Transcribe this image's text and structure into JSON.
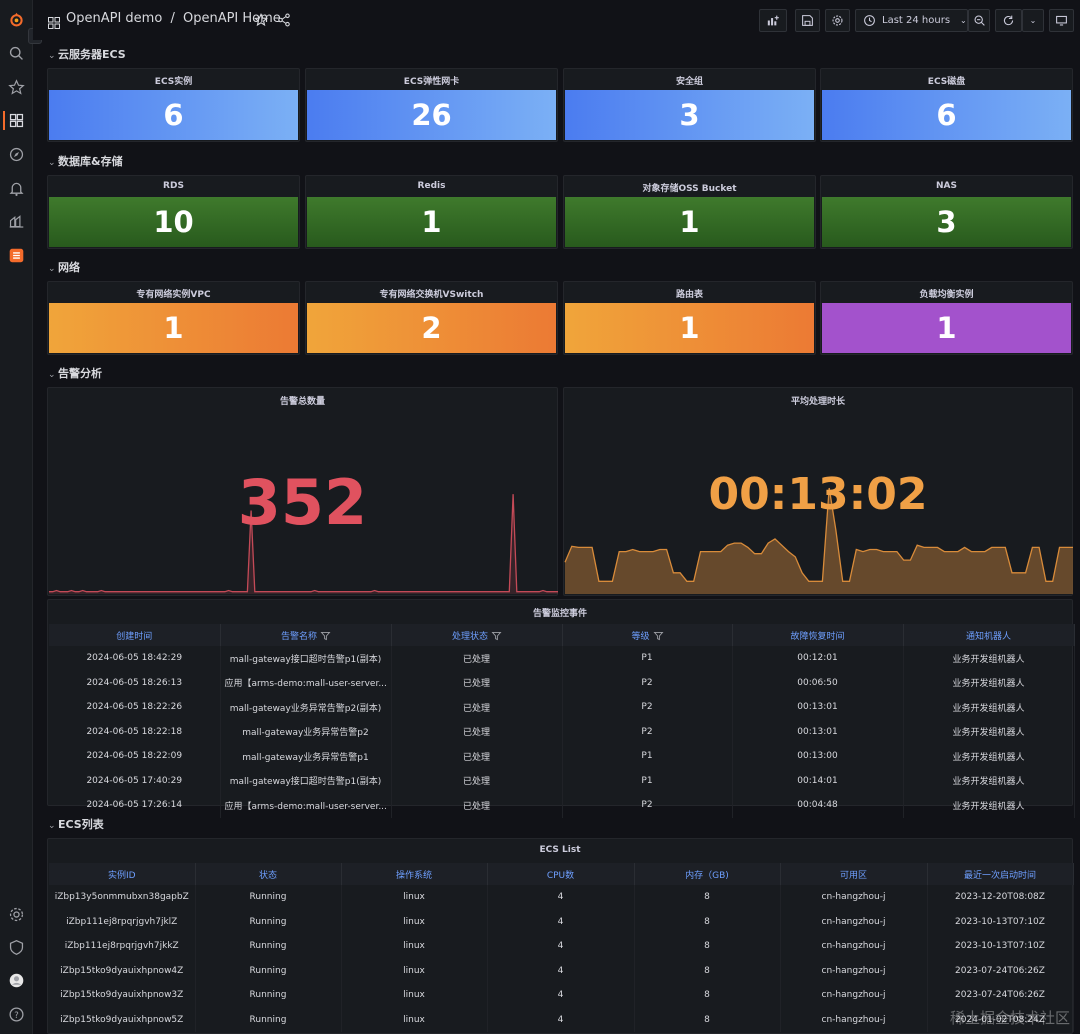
{
  "breadcrumb": {
    "folder": "OpenAPI demo",
    "separator": "/",
    "dashboard": "OpenAPI Home"
  },
  "toolbar": {
    "time_range": "Last 24 hours"
  },
  "rows": {
    "ecs": "云服务器ECS",
    "db": "数据库&存储",
    "net": "网络",
    "alert": "告警分析",
    "ecs_list": "ECS列表"
  },
  "ecs_stats": [
    {
      "title": "ECS实例",
      "value": "6"
    },
    {
      "title": "ECS弹性网卡",
      "value": "26"
    },
    {
      "title": "安全组",
      "value": "3"
    },
    {
      "title": "ECS磁盘",
      "value": "6"
    }
  ],
  "db_stats": [
    {
      "title": "RDS",
      "value": "10"
    },
    {
      "title": "Redis",
      "value": "1"
    },
    {
      "title": "对象存储OSS Bucket",
      "value": "1"
    },
    {
      "title": "NAS",
      "value": "3"
    }
  ],
  "net_stats": [
    {
      "title": "专有网络实例VPC",
      "value": "1"
    },
    {
      "title": "专有网络交换机VSwitch",
      "value": "2"
    },
    {
      "title": "路由表",
      "value": "1"
    },
    {
      "title": "负载均衡实例",
      "value": "1"
    }
  ],
  "alert_total": {
    "title": "告警总数量",
    "value": "352",
    "color": "#e0525f"
  },
  "alert_avg": {
    "title": "平均处理时长",
    "value": "00:13:02",
    "color": "#f0a046"
  },
  "chart_data": [
    {
      "type": "area",
      "title": "告警总数量",
      "series": [
        {
          "values": [
            2,
            2,
            3,
            2,
            2,
            2,
            3,
            2,
            2,
            3,
            2,
            2,
            2,
            2,
            3,
            2,
            2,
            2,
            2,
            2,
            2,
            2,
            2,
            2,
            2,
            2,
            2,
            2,
            2,
            2,
            2,
            2,
            2,
            2,
            2,
            2,
            2,
            2,
            2,
            2,
            2,
            2,
            2,
            2,
            2,
            2,
            2,
            2,
            3,
            2,
            2,
            2,
            2,
            2,
            72,
            2,
            2,
            2,
            2,
            2,
            2,
            2,
            2,
            2,
            2,
            2,
            2,
            2,
            2,
            2,
            2,
            3,
            2,
            2,
            2,
            2,
            2,
            2,
            2,
            2,
            2,
            2,
            2,
            2,
            2,
            2,
            2,
            3,
            2,
            2,
            2,
            2,
            2,
            2,
            2,
            2,
            2,
            2,
            2,
            2,
            2,
            2,
            2,
            2,
            2,
            2,
            2,
            2,
            2,
            2,
            2,
            2,
            2,
            2,
            2,
            2,
            2,
            2,
            2,
            2,
            2,
            2,
            2,
            2,
            86,
            2,
            2,
            2,
            2,
            2,
            2,
            2,
            3,
            2,
            2,
            2,
            2
          ]
        }
      ]
    },
    {
      "type": "area",
      "title": "平均处理时长",
      "series": [
        {
          "values": [
            30,
            45,
            44,
            44,
            44,
            12,
            12,
            12,
            40,
            40,
            42,
            40,
            40,
            40,
            42,
            42,
            20,
            20,
            12,
            12,
            40,
            40,
            40,
            40,
            46,
            48,
            48,
            44,
            38,
            38,
            48,
            52,
            46,
            40,
            35,
            20,
            12,
            12,
            12,
            100,
            60,
            12,
            12,
            42,
            40,
            42,
            42,
            40,
            40,
            40,
            32,
            32,
            46,
            44,
            44,
            44,
            40,
            40,
            40,
            44,
            40,
            40,
            40,
            44,
            44,
            44,
            20,
            20,
            20,
            44,
            44,
            12,
            12,
            44,
            44,
            44
          ]
        }
      ]
    }
  ],
  "alert_table": {
    "title": "告警监控事件",
    "columns": [
      "创建时间",
      "告警名称",
      "处理状态",
      "等级",
      "故障恢复时间",
      "通知机器人"
    ],
    "rows": [
      [
        "2024-06-05 18:42:29",
        "mall-gateway接口超时告警p1(副本)",
        "已处理",
        "P1",
        "00:12:01",
        "业务开发组机器人"
      ],
      [
        "2024-06-05 18:26:13",
        "应用【arms-demo:mall-user-server...",
        "已处理",
        "P2",
        "00:06:50",
        "业务开发组机器人"
      ],
      [
        "2024-06-05 18:22:26",
        "mall-gateway业务异常告警p2(副本)",
        "已处理",
        "P2",
        "00:13:01",
        "业务开发组机器人"
      ],
      [
        "2024-06-05 18:22:18",
        "mall-gateway业务异常告警p2",
        "已处理",
        "P2",
        "00:13:01",
        "业务开发组机器人"
      ],
      [
        "2024-06-05 18:22:09",
        "mall-gateway业务异常告警p1",
        "已处理",
        "P1",
        "00:13:00",
        "业务开发组机器人"
      ],
      [
        "2024-06-05 17:40:29",
        "mall-gateway接口超时告警p1(副本)",
        "已处理",
        "P1",
        "00:14:01",
        "业务开发组机器人"
      ],
      [
        "2024-06-05 17:26:14",
        "应用【arms-demo:mall-user-server...",
        "已处理",
        "P2",
        "00:04:48",
        "业务开发组机器人"
      ]
    ]
  },
  "ecs_table": {
    "title": "ECS List",
    "columns": [
      "实例ID",
      "状态",
      "操作系统",
      "CPU数",
      "内存（GB)",
      "可用区",
      "最近一次启动时间"
    ],
    "rows": [
      [
        "iZbp13y5onmmubxn38gapbZ",
        "Running",
        "linux",
        "4",
        "8",
        "cn-hangzhou-j",
        "2023-12-20T08:08Z"
      ],
      [
        "iZbp111ej8rpqrjgvh7jklZ",
        "Running",
        "linux",
        "4",
        "8",
        "cn-hangzhou-j",
        "2023-10-13T07:10Z"
      ],
      [
        "iZbp111ej8rpqrjgvh7jkkZ",
        "Running",
        "linux",
        "4",
        "8",
        "cn-hangzhou-j",
        "2023-10-13T07:10Z"
      ],
      [
        "iZbp15tko9dyauixhpnow4Z",
        "Running",
        "linux",
        "4",
        "8",
        "cn-hangzhou-j",
        "2023-07-24T06:26Z"
      ],
      [
        "iZbp15tko9dyauixhpnow3Z",
        "Running",
        "linux",
        "4",
        "8",
        "cn-hangzhou-j",
        "2023-07-24T06:26Z"
      ],
      [
        "iZbp15tko9dyauixhpnow5Z",
        "Running",
        "linux",
        "4",
        "8",
        "cn-hangzhou-j",
        "2024-01-02T08:24Z"
      ]
    ]
  },
  "watermark": "稀土掘金技术社区"
}
